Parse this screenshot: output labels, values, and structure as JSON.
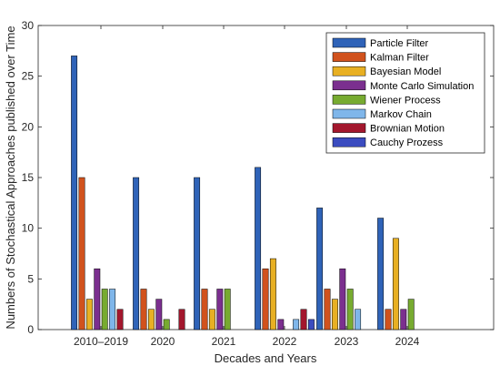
{
  "chart_data": {
    "type": "bar",
    "xlabel": "Decades and Years",
    "ylabel": "Numbers of Stochastical Approaches published over Time",
    "categories": [
      "2010–2019",
      "2020",
      "2021",
      "2022",
      "2023",
      "2024"
    ],
    "ylim": [
      0,
      30
    ],
    "yticks": [
      0,
      5,
      10,
      15,
      20,
      25,
      30
    ],
    "grid": false,
    "legend_position": "top-right",
    "series": [
      {
        "name": "Particle Filter",
        "color": "#2f63b8",
        "values": [
          27,
          15,
          15,
          16,
          12,
          11
        ]
      },
      {
        "name": "Kalman Filter",
        "color": "#d1521d",
        "values": [
          15,
          4,
          4,
          6,
          4,
          2
        ]
      },
      {
        "name": "Bayesian Model",
        "color": "#e8b023",
        "values": [
          3,
          2,
          2,
          7,
          3,
          9
        ]
      },
      {
        "name": "Monte Carlo Simulation",
        "color": "#7b2f8f",
        "values": [
          6,
          3,
          4,
          1,
          6,
          2
        ]
      },
      {
        "name": "Wiener Process",
        "color": "#77ab30",
        "values": [
          4,
          1,
          4,
          0,
          4,
          3
        ]
      },
      {
        "name": "Markov Chain",
        "color": "#7fb6ea",
        "values": [
          4,
          0,
          0,
          1,
          2,
          0
        ]
      },
      {
        "name": "Brownian Motion",
        "color": "#a3172d",
        "values": [
          2,
          2,
          0,
          2,
          0,
          0
        ]
      },
      {
        "name": "Cauchy Prozess",
        "color": "#3b4cc0",
        "values": [
          0,
          0,
          0,
          1,
          0,
          0
        ]
      }
    ]
  }
}
